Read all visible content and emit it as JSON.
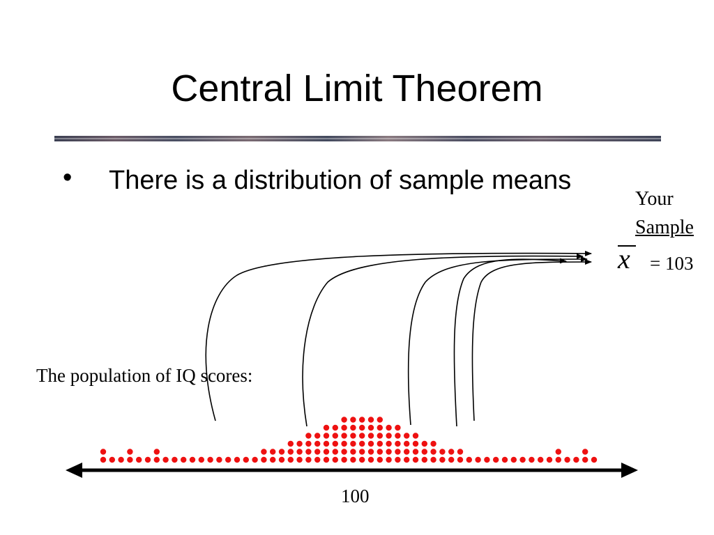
{
  "slide": {
    "title": "Central Limit Theorem",
    "bullet_marker": "•",
    "bullet_text": "There is a distribution of sample means"
  },
  "annotations": {
    "your": "Your",
    "sample": "Sample",
    "xbar_symbol": "x",
    "xbar_value": "= 103",
    "population_label": "The population of IQ scores:",
    "axis_center_label": "100"
  },
  "colors": {
    "dots": "#ee1111",
    "lines": "#000000"
  },
  "icons": {
    "axis": "double-headed-arrow",
    "sample_arrows": "arrow-right"
  }
}
